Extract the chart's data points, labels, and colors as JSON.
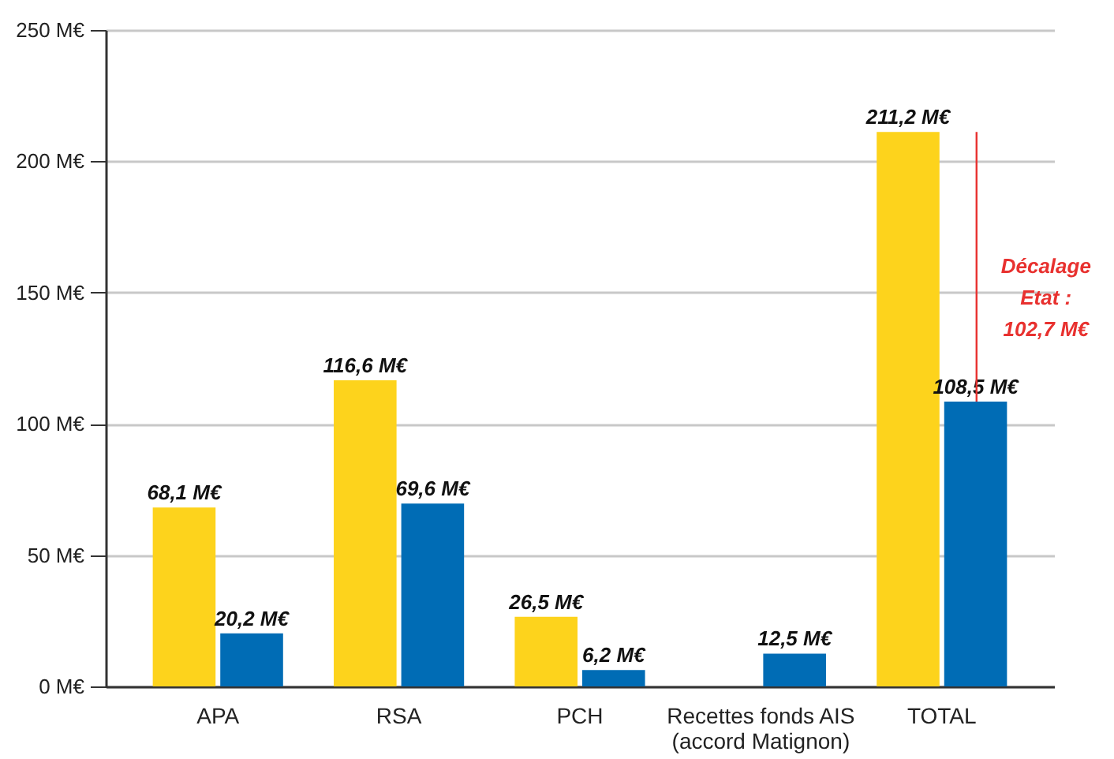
{
  "chart_data": {
    "type": "bar",
    "categories": [
      "APA",
      "RSA",
      "PCH",
      "Recettes fonds AIS\n(accord Matignon)",
      "TOTAL"
    ],
    "series": [
      {
        "color": "#fdd31c",
        "values": [
          68.1,
          116.6,
          26.5,
          null,
          211.2
        ],
        "value_labels": [
          "68,1 M€",
          "116,6 M€",
          "26,5 M€",
          null,
          "211,2 M€"
        ]
      },
      {
        "color": "#006cb5",
        "values": [
          20.2,
          69.6,
          6.2,
          12.5,
          108.5
        ],
        "value_labels": [
          "20,2 M€",
          "69,6 M€",
          "6,2 M€",
          "12,5 M€",
          "108,5 M€"
        ]
      }
    ],
    "ylim": [
      0,
      250
    ],
    "yticks": [
      {
        "value": 0,
        "label": "0  M€"
      },
      {
        "value": 50,
        "label": "50 M€"
      },
      {
        "value": 100,
        "label": "100 M€"
      },
      {
        "value": 150,
        "label": "150 M€"
      },
      {
        "value": 200,
        "label": "200 M€"
      },
      {
        "value": 250,
        "label": "250 M€"
      }
    ],
    "grid": "y",
    "legend": false,
    "annotations": [
      {
        "text": "Décalage\nEtat :\n102,7 M€",
        "x": "TOTAL",
        "y": 160
      }
    ]
  }
}
